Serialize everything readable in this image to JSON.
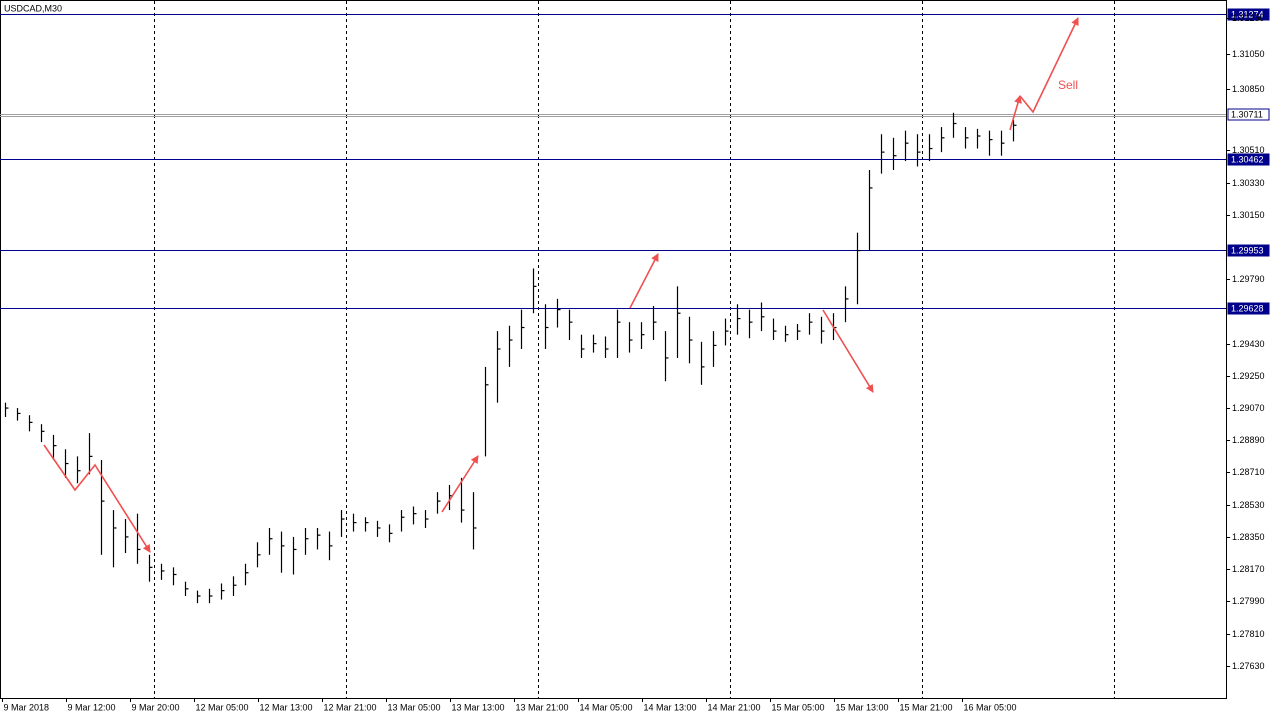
{
  "chart_data": {
    "type": "ohlc",
    "title": "USDCAD,M30",
    "annotation": "Sell",
    "color": "#000000",
    "ylim": [
      1.2745,
      1.3135
    ],
    "yticks": [
      {
        "value": 1.3125,
        "label": "1.31250"
      },
      {
        "value": 1.3105,
        "label": "1.31050"
      },
      {
        "value": 1.3085,
        "label": "1.30850"
      },
      {
        "value": 1.3051,
        "label": "1.30510"
      },
      {
        "value": 1.3033,
        "label": "1.30330"
      },
      {
        "value": 1.3015,
        "label": "1.30150"
      },
      {
        "value": 1.2979,
        "label": "1.29790"
      },
      {
        "value": 1.2943,
        "label": "1.29430"
      },
      {
        "value": 1.2925,
        "label": "1.29250"
      },
      {
        "value": 1.2907,
        "label": "1.29070"
      },
      {
        "value": 1.2889,
        "label": "1.28890"
      },
      {
        "value": 1.2871,
        "label": "1.28710"
      },
      {
        "value": 1.2853,
        "label": "1.28530"
      },
      {
        "value": 1.2835,
        "label": "1.28350"
      },
      {
        "value": 1.2817,
        "label": "1.28170"
      },
      {
        "value": 1.2799,
        "label": "1.27990"
      },
      {
        "value": 1.2781,
        "label": "1.27810"
      },
      {
        "value": 1.2763,
        "label": "1.27630"
      }
    ],
    "x_labels": [
      "9 Mar 2018",
      "9 Mar 12:00",
      "9 Mar 20:00",
      "12 Mar 05:00",
      "12 Mar 13:00",
      "12 Mar 21:00",
      "13 Mar 05:00",
      "13 Mar 13:00",
      "13 Mar 21:00",
      "14 Mar 05:00",
      "14 Mar 13:00",
      "14 Mar 21:00",
      "15 Mar 05:00",
      "15 Mar 13:00",
      "15 Mar 21:00",
      "16 Mar 05:00"
    ],
    "levels": [
      {
        "value": 1.31274,
        "color": "#00008b"
      },
      {
        "value": 1.30711,
        "color": "#a0a0a0"
      },
      {
        "value": 1.30462,
        "color": "#00008b"
      },
      {
        "value": 1.29953,
        "color": "#00008b"
      },
      {
        "value": 1.29628,
        "color": "#00008b"
      }
    ],
    "high": [
      1.291,
      1.2907,
      1.2903,
      1.2898,
      1.2892,
      1.2884,
      1.288,
      1.2893,
      1.2878,
      1.285,
      1.2845,
      1.2848,
      1.2825,
      1.282,
      1.2818,
      1.281,
      1.2805,
      1.2806,
      1.2809,
      1.2813,
      1.282,
      1.2832,
      1.284,
      1.2838,
      1.2835,
      1.284,
      1.284,
      1.2838,
      1.285,
      1.2848,
      1.2846,
      1.2844,
      1.2842,
      1.285,
      1.2852,
      1.285,
      1.286,
      1.2864,
      1.2868,
      1.286,
      1.293,
      1.295,
      1.2953,
      1.2962,
      1.2985,
      1.2965,
      1.2968,
      1.2962,
      1.2948,
      1.2948,
      1.2947,
      1.2962,
      1.2955,
      1.2955,
      1.2964,
      1.295,
      1.2975,
      1.2958,
      1.2944,
      1.295,
      1.2957,
      1.2965,
      1.2962,
      1.2966,
      1.2957,
      1.2953,
      1.2954,
      1.296,
      1.2958,
      1.296,
      1.2975,
      1.3005,
      1.304,
      1.306,
      1.3058,
      1.3062,
      1.306,
      1.306,
      1.3064,
      1.3072,
      1.3064,
      1.3063,
      1.3062,
      1.3062,
      1.3068
    ],
    "low": [
      1.2902,
      1.29,
      1.2894,
      1.2888,
      1.2878,
      1.2868,
      1.2865,
      1.287,
      1.2825,
      1.2818,
      1.2826,
      1.282,
      1.281,
      1.2811,
      1.2808,
      1.2802,
      1.2798,
      1.2798,
      1.28,
      1.2802,
      1.2808,
      1.2818,
      1.2825,
      1.2815,
      1.2814,
      1.2825,
      1.2828,
      1.2822,
      1.2835,
      1.2838,
      1.2838,
      1.2835,
      1.2832,
      1.2838,
      1.2842,
      1.284,
      1.2848,
      1.285,
      1.2843,
      1.2828,
      1.288,
      1.291,
      1.293,
      1.294,
      1.296,
      1.294,
      1.2952,
      1.2945,
      1.2935,
      1.2938,
      1.2935,
      1.2935,
      1.2938,
      1.294,
      1.2945,
      1.2922,
      1.2935,
      1.2932,
      1.292,
      1.293,
      1.2942,
      1.2948,
      1.2946,
      1.295,
      1.2945,
      1.2944,
      1.2945,
      1.2948,
      1.2943,
      1.2945,
      1.2955,
      1.2965,
      1.2995,
      1.3038,
      1.304,
      1.3045,
      1.3042,
      1.3045,
      1.305,
      1.3058,
      1.3052,
      1.3052,
      1.3048,
      1.3048,
      1.3056
    ],
    "close": [
      1.2907,
      1.2904,
      1.2899,
      1.2894,
      1.2886,
      1.2876,
      1.2872,
      1.288,
      1.2855,
      1.284,
      1.2835,
      1.2828,
      1.2818,
      1.2816,
      1.2814,
      1.2806,
      1.2802,
      1.2802,
      1.2805,
      1.2808,
      1.2815,
      1.2825,
      1.2834,
      1.283,
      1.2828,
      1.2834,
      1.2836,
      1.283,
      1.2845,
      1.2843,
      1.2843,
      1.284,
      1.2837,
      1.2846,
      1.2848,
      1.2845,
      1.2855,
      1.2858,
      1.285,
      1.284,
      1.292,
      1.294,
      1.2945,
      1.2952,
      1.2975,
      1.2952,
      1.2962,
      1.2955,
      1.294,
      1.2943,
      1.294,
      1.2955,
      1.2945,
      1.2948,
      1.2955,
      1.2935,
      1.296,
      1.2945,
      1.293,
      1.2942,
      1.295,
      1.2957,
      1.2955,
      1.2958,
      1.295,
      1.2948,
      1.295,
      1.2955,
      1.295,
      1.2952,
      1.2968,
      1.2995,
      1.303,
      1.305,
      1.3048,
      1.3055,
      1.305,
      1.3052,
      1.3058,
      1.3066,
      1.3058,
      1.3059,
      1.3057,
      1.3055,
      1.3065
    ]
  }
}
